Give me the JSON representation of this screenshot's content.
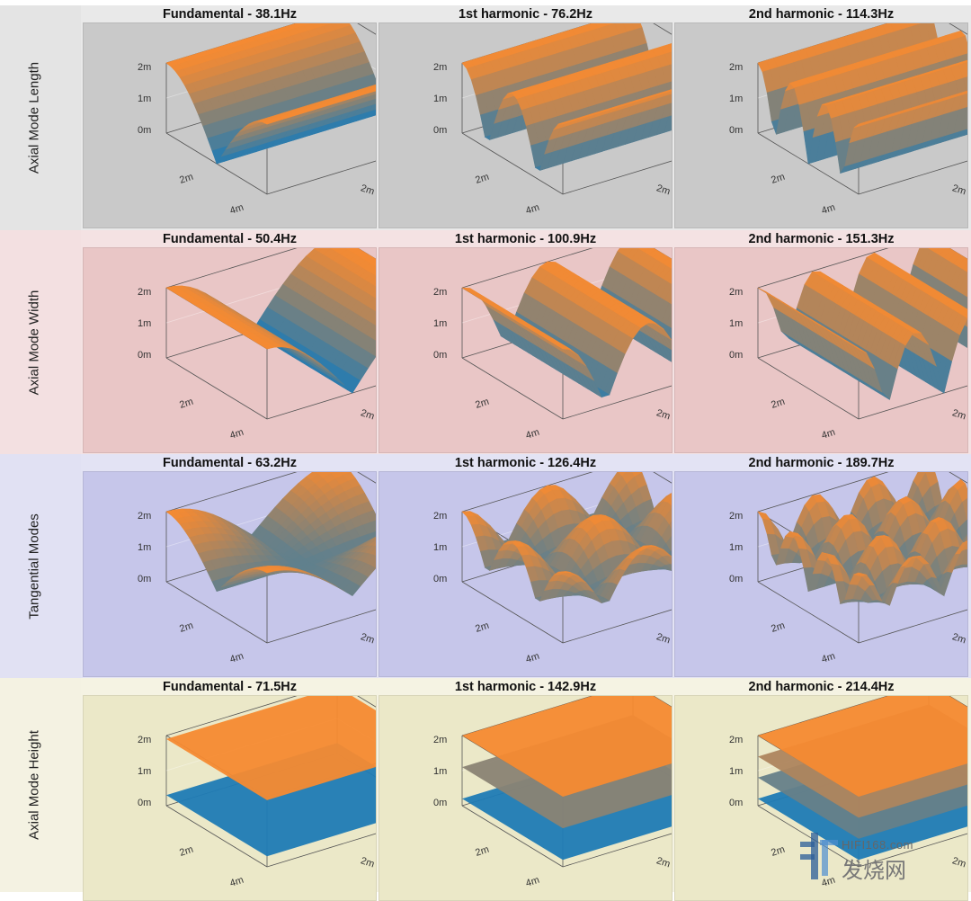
{
  "chart_data": {
    "type": "surface3d-grid",
    "title": "",
    "colors": {
      "low": "#1f7bb5",
      "high": "#f58a32"
    },
    "axis_ticks": {
      "z": [
        "0m",
        "1m",
        "2m"
      ],
      "x": [
        "0m",
        "2m"
      ],
      "y": [
        "0m",
        "2m",
        "4m"
      ]
    },
    "rows": [
      {
        "label": "Axial Mode Length",
        "mode": "length",
        "bg": "#c9c9c9",
        "strip": "#e4e4e4",
        "titlebg": "#e9e9e9",
        "panels": [
          {
            "title": "Fundamental - 38.1Hz",
            "order": 1
          },
          {
            "title": "1st harmonic - 76.2Hz",
            "order": 2
          },
          {
            "title": "2nd harmonic - 114.3Hz",
            "order": 3
          }
        ]
      },
      {
        "label": "Axial Mode Width",
        "mode": "width",
        "bg": "#e9c6c6",
        "strip": "#f3e0e1",
        "titlebg": "#f4e2e3",
        "panels": [
          {
            "title": "Fundamental - 50.4Hz",
            "order": 1
          },
          {
            "title": "1st harmonic - 100.9Hz",
            "order": 2
          },
          {
            "title": "2nd harmonic - 151.3Hz",
            "order": 3
          }
        ]
      },
      {
        "label": "Tangential Modes",
        "mode": "tangential",
        "bg": "#c6c6ea",
        "strip": "#e1e1f3",
        "titlebg": "#e3e3f4",
        "panels": [
          {
            "title": "Fundamental - 63.2Hz",
            "order": 1
          },
          {
            "title": "1st harmonic - 126.4Hz",
            "order": 2
          },
          {
            "title": "2nd harmonic - 189.7Hz",
            "order": 3
          }
        ]
      },
      {
        "label": "Axial Mode Height",
        "mode": "height",
        "bg": "#ebe8c8",
        "strip": "#f4f2e2",
        "titlebg": "#f5f3e3",
        "panels": [
          {
            "title": "Fundamental - 71.5Hz",
            "order": 1
          },
          {
            "title": "1st harmonic - 142.9Hz",
            "order": 2
          },
          {
            "title": "2nd harmonic - 214.4Hz",
            "order": 3
          }
        ]
      }
    ]
  },
  "watermark": {
    "line1": "HIFI168.com",
    "line2": "发烧网"
  }
}
